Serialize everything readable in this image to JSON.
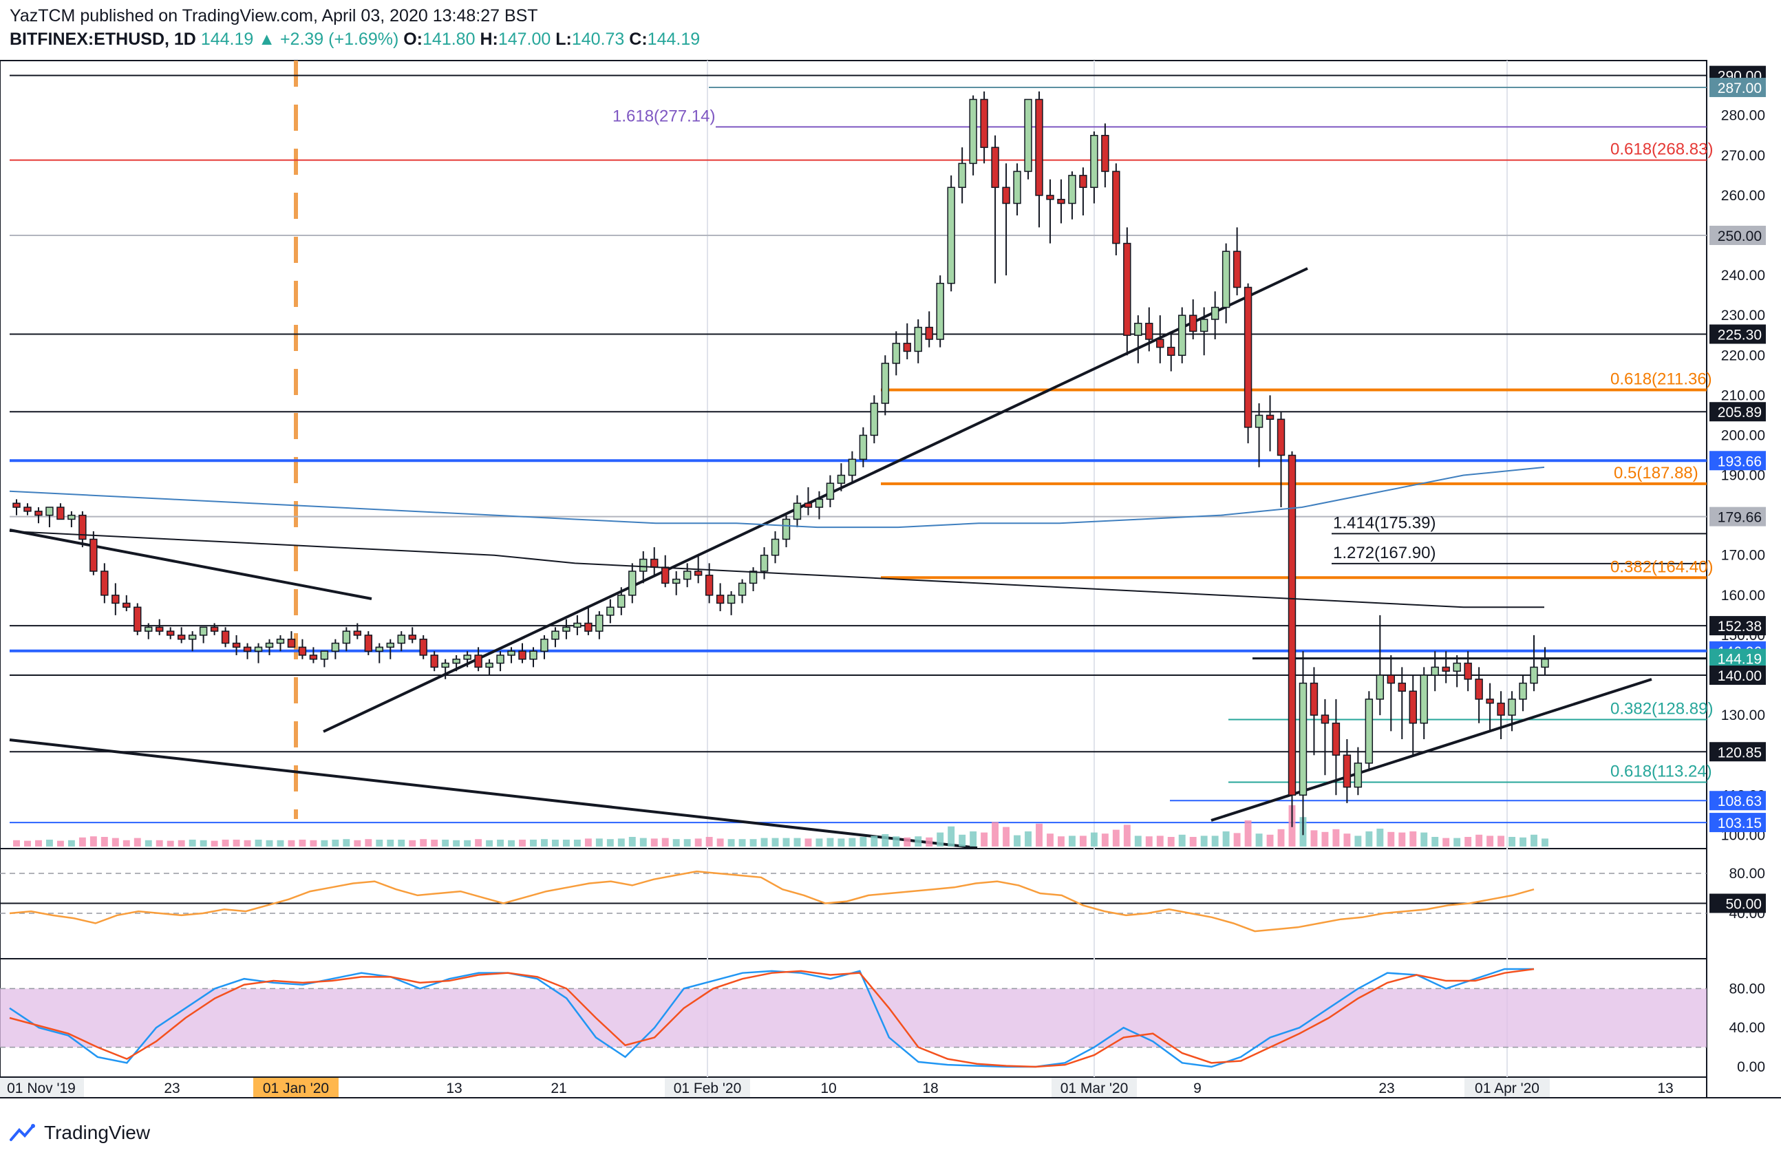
{
  "header": {
    "publisher_line": "YazTCM published on TradingView.com, April 03, 2020 13:48:27 BST",
    "symbol": "BITFINEX:ETHUSD, 1D",
    "last": "144.19",
    "change": "+2.39 (+1.69%)",
    "o_label": "O:",
    "o": "141.80",
    "h_label": "H:",
    "h": "147.00",
    "l_label": "L:",
    "l": "140.73",
    "c_label": "C:",
    "c": "144.19",
    "up_arrow": "▲"
  },
  "footer": {
    "brand": "TradingView",
    "logo_icon": "tradingview-logo-icon"
  },
  "colors": {
    "up": "#26a69a",
    "up_fill": "#a5d6a7",
    "down": "#ef5350",
    "down_fill": "#d32f2f",
    "fib_orange": "#f57c00",
    "fib_red": "#e53935",
    "fib_purple": "#7e57c2",
    "fib_teal": "#26a69a",
    "blue_level": "#2962ff",
    "ma_blue": "#3f7fbf",
    "rsi": "#f89d3b",
    "stoch_k": "#2196f3",
    "stoch_d": "#f4511e",
    "stoch_band": "#e1bee7"
  },
  "chart_data": {
    "type": "candlestick",
    "symbol": "BITFINEX:ETHUSD",
    "interval": "1D",
    "ylim": [
      98,
      292
    ],
    "x_ticks": [
      "01 Nov '19",
      "23",
      "01 Jan '20",
      "13",
      "21",
      "01 Feb '20",
      "10",
      "18",
      "01 Mar '20",
      "9",
      "23",
      "01 Apr '20",
      "13"
    ],
    "price_axis_labels": [
      "290.00",
      "280.00",
      "270.00",
      "260.00",
      "250.00",
      "240.00",
      "230.00",
      "220.00",
      "210.00",
      "200.00",
      "190.00",
      "180.00",
      "170.00",
      "160.00",
      "150.00",
      "140.00",
      "130.00",
      "120.00",
      "110.00",
      "100.00"
    ],
    "horizontal_levels": [
      {
        "value": 290.0,
        "label": "290.00",
        "style": "black"
      },
      {
        "value": 287.0,
        "label": "287.00",
        "style": "teal"
      },
      {
        "value": 250.0,
        "label": "250.00",
        "style": "gray"
      },
      {
        "value": 225.3,
        "label": "225.30",
        "style": "black"
      },
      {
        "value": 205.89,
        "label": "205.89",
        "style": "black"
      },
      {
        "value": 193.66,
        "label": "193.66",
        "style": "blue"
      },
      {
        "value": 179.66,
        "label": "179.66",
        "style": "gray"
      },
      {
        "value": 152.38,
        "label": "152.38",
        "style": "black"
      },
      {
        "value": 146.06,
        "label": "146.06",
        "style": "blue"
      },
      {
        "value": 144.19,
        "label": "144.19",
        "style": "last"
      },
      {
        "value": 140.0,
        "label": "140.00",
        "style": "black"
      },
      {
        "value": 120.85,
        "label": "120.85",
        "style": "black"
      },
      {
        "value": 108.63,
        "label": "108.63",
        "style": "blue"
      },
      {
        "value": 103.15,
        "label": "103.15",
        "style": "blue"
      }
    ],
    "fib_levels": [
      {
        "value": 277.14,
        "label": "1.618(277.14)",
        "color": "purple"
      },
      {
        "value": 268.83,
        "label": "0.618(268.83)",
        "color": "red"
      },
      {
        "value": 211.36,
        "label": "0.618(211.36)",
        "color": "orange"
      },
      {
        "value": 187.88,
        "label": "0.5(187.88)",
        "color": "orange"
      },
      {
        "value": 175.39,
        "label": "1.414(175.39)",
        "color": "black"
      },
      {
        "value": 167.9,
        "label": "1.272(167.90)",
        "color": "black"
      },
      {
        "value": 164.4,
        "label": "0.382(164.40)",
        "color": "orange"
      },
      {
        "value": 128.89,
        "label": "0.382(128.89)",
        "color": "teal"
      },
      {
        "value": 113.24,
        "label": "0.618(113.24)",
        "color": "teal"
      }
    ],
    "candles_ohlc": [
      [
        183,
        184,
        180,
        182
      ],
      [
        182,
        183,
        180,
        181
      ],
      [
        181,
        182,
        178,
        180
      ],
      [
        180,
        182,
        177,
        182
      ],
      [
        182,
        183,
        180,
        179
      ],
      [
        179,
        181,
        177,
        180
      ],
      [
        180,
        181,
        172,
        174
      ],
      [
        174,
        176,
        165,
        166
      ],
      [
        166,
        168,
        158,
        160
      ],
      [
        160,
        163,
        155,
        158
      ],
      [
        158,
        160,
        156,
        157
      ],
      [
        157,
        158,
        150,
        151
      ],
      [
        151,
        153,
        149,
        152
      ],
      [
        152,
        154,
        150,
        151
      ],
      [
        151,
        152,
        149,
        150
      ],
      [
        150,
        152,
        148,
        149
      ],
      [
        149,
        151,
        146,
        150
      ],
      [
        150,
        152,
        148,
        152
      ],
      [
        152,
        153,
        150,
        151
      ],
      [
        151,
        152,
        147,
        148
      ],
      [
        148,
        150,
        145,
        147
      ],
      [
        147,
        148,
        144,
        146
      ],
      [
        146,
        148,
        143,
        147
      ],
      [
        147,
        149,
        145,
        148
      ],
      [
        148,
        150,
        146,
        149
      ],
      [
        149,
        151,
        147,
        147
      ],
      [
        147,
        149,
        144,
        145
      ],
      [
        145,
        147,
        143,
        144
      ],
      [
        144,
        146,
        142,
        146
      ],
      [
        146,
        149,
        144,
        148
      ],
      [
        148,
        152,
        146,
        151
      ],
      [
        151,
        153,
        149,
        150
      ],
      [
        150,
        151,
        145,
        146
      ],
      [
        146,
        148,
        143,
        147
      ],
      [
        147,
        149,
        144,
        148
      ],
      [
        148,
        151,
        146,
        150
      ],
      [
        150,
        152,
        148,
        149
      ],
      [
        149,
        150,
        144,
        145
      ],
      [
        145,
        146,
        141,
        142
      ],
      [
        142,
        144,
        139,
        143
      ],
      [
        143,
        145,
        141,
        144
      ],
      [
        144,
        146,
        142,
        145
      ],
      [
        145,
        147,
        141,
        142
      ],
      [
        142,
        144,
        140,
        143
      ],
      [
        143,
        146,
        141,
        145
      ],
      [
        145,
        147,
        143,
        146
      ],
      [
        146,
        148,
        143,
        144
      ],
      [
        144,
        147,
        142,
        146
      ],
      [
        146,
        150,
        144,
        149
      ],
      [
        149,
        152,
        147,
        151
      ],
      [
        151,
        154,
        149,
        152
      ],
      [
        152,
        155,
        150,
        153
      ],
      [
        153,
        157,
        150,
        151
      ],
      [
        151,
        156,
        149,
        155
      ],
      [
        155,
        159,
        153,
        157
      ],
      [
        157,
        162,
        155,
        160
      ],
      [
        160,
        168,
        158,
        166
      ],
      [
        166,
        171,
        163,
        169
      ],
      [
        169,
        172,
        165,
        167
      ],
      [
        167,
        170,
        162,
        163
      ],
      [
        163,
        166,
        160,
        164
      ],
      [
        164,
        168,
        162,
        166
      ],
      [
        166,
        170,
        163,
        165
      ],
      [
        165,
        168,
        158,
        160
      ],
      [
        160,
        163,
        156,
        158
      ],
      [
        158,
        161,
        155,
        160
      ],
      [
        160,
        164,
        158,
        163
      ],
      [
        163,
        167,
        161,
        166
      ],
      [
        166,
        172,
        164,
        170
      ],
      [
        170,
        176,
        168,
        174
      ],
      [
        174,
        180,
        172,
        179
      ],
      [
        179,
        185,
        177,
        183
      ],
      [
        183,
        187,
        180,
        182
      ],
      [
        182,
        186,
        179,
        184
      ],
      [
        184,
        190,
        182,
        188
      ],
      [
        188,
        193,
        186,
        190
      ],
      [
        190,
        196,
        188,
        194
      ],
      [
        194,
        202,
        192,
        200
      ],
      [
        200,
        210,
        198,
        208
      ],
      [
        208,
        220,
        205,
        218
      ],
      [
        218,
        226,
        215,
        223
      ],
      [
        223,
        228,
        219,
        221
      ],
      [
        221,
        229,
        218,
        227
      ],
      [
        227,
        231,
        222,
        224
      ],
      [
        224,
        240,
        222,
        238
      ],
      [
        238,
        265,
        236,
        262
      ],
      [
        262,
        272,
        258,
        268
      ],
      [
        268,
        285,
        265,
        284
      ],
      [
        284,
        286,
        268,
        272
      ],
      [
        272,
        275,
        238,
        262
      ],
      [
        262,
        268,
        240,
        258
      ],
      [
        258,
        268,
        255,
        266
      ],
      [
        266,
        284,
        264,
        284
      ],
      [
        284,
        286,
        252,
        260
      ],
      [
        260,
        264,
        248,
        259
      ],
      [
        259,
        264,
        253,
        258
      ],
      [
        258,
        266,
        254,
        265
      ],
      [
        265,
        267,
        255,
        262
      ],
      [
        262,
        276,
        258,
        275
      ],
      [
        275,
        278,
        262,
        266
      ],
      [
        266,
        268,
        245,
        248
      ],
      [
        248,
        252,
        220,
        225
      ],
      [
        225,
        230,
        218,
        228
      ],
      [
        228,
        232,
        221,
        224
      ],
      [
        224,
        230,
        218,
        222
      ],
      [
        222,
        226,
        216,
        220
      ],
      [
        220,
        232,
        218,
        230
      ],
      [
        230,
        234,
        224,
        226
      ],
      [
        226,
        232,
        220,
        229
      ],
      [
        229,
        236,
        224,
        232
      ],
      [
        232,
        248,
        228,
        246
      ],
      [
        246,
        252,
        235,
        237
      ],
      [
        237,
        238,
        198,
        202
      ],
      [
        202,
        208,
        192,
        205
      ],
      [
        205,
        210,
        196,
        204
      ],
      [
        204,
        206,
        182,
        195
      ],
      [
        195,
        196,
        102,
        110
      ],
      [
        110,
        146,
        100,
        138
      ],
      [
        138,
        142,
        120,
        130
      ],
      [
        130,
        134,
        115,
        128
      ],
      [
        128,
        134,
        110,
        120
      ],
      [
        120,
        124,
        108,
        112
      ],
      [
        112,
        122,
        110,
        118
      ],
      [
        118,
        136,
        116,
        134
      ],
      [
        134,
        155,
        130,
        140
      ],
      [
        140,
        145,
        126,
        138
      ],
      [
        138,
        142,
        124,
        136
      ],
      [
        136,
        140,
        120,
        128
      ],
      [
        128,
        142,
        124,
        140
      ],
      [
        140,
        146,
        136,
        142
      ],
      [
        142,
        146,
        138,
        141
      ],
      [
        141,
        145,
        137,
        143
      ],
      [
        143,
        146,
        136,
        139
      ],
      [
        139,
        142,
        128,
        134
      ],
      [
        134,
        138,
        126,
        133
      ],
      [
        133,
        136,
        124,
        130
      ],
      [
        130,
        136,
        126,
        134
      ],
      [
        134,
        140,
        131,
        138
      ],
      [
        138,
        150,
        136,
        142
      ],
      [
        142,
        147,
        140,
        144
      ]
    ],
    "series": [
      {
        "name": "",
        "kind": "moving-average",
        "values": [
          176,
          175,
          174,
          173,
          172,
          171,
          170,
          168,
          167,
          166,
          165,
          164,
          163,
          162,
          161,
          160,
          159,
          158,
          157,
          157
        ]
      },
      {
        "name": "",
        "kind": "moving-average",
        "values": [
          186,
          185,
          184,
          183,
          182,
          181,
          180,
          179,
          178,
          178,
          177,
          177,
          178,
          178,
          179,
          180,
          182,
          186,
          190,
          192
        ]
      }
    ],
    "rsi": {
      "ylim": [
        0,
        100
      ],
      "ticks": [
        "80.00",
        "50.00",
        "40.00"
      ],
      "level_label": "50.00",
      "values": [
        40,
        42,
        38,
        35,
        30,
        38,
        42,
        40,
        38,
        40,
        44,
        42,
        48,
        54,
        62,
        66,
        70,
        72,
        64,
        58,
        60,
        62,
        56,
        50,
        56,
        62,
        66,
        70,
        72,
        68,
        74,
        78,
        82,
        80,
        78,
        76,
        64,
        58,
        50,
        52,
        58,
        60,
        62,
        64,
        66,
        70,
        72,
        68,
        60,
        58,
        48,
        42,
        38,
        40,
        44,
        40,
        36,
        30,
        22,
        24,
        26,
        30,
        34,
        36,
        40,
        42,
        44,
        48,
        50,
        54,
        58,
        64
      ]
    },
    "stoch_rsi": {
      "ylim": [
        0,
        100
      ],
      "ticks": [
        "80.00",
        "40.00",
        "0.00"
      ],
      "k": [
        60,
        40,
        32,
        10,
        4,
        40,
        60,
        80,
        90,
        86,
        84,
        90,
        96,
        92,
        80,
        90,
        96,
        96,
        90,
        70,
        30,
        10,
        40,
        80,
        88,
        96,
        98,
        96,
        90,
        98,
        30,
        5,
        2,
        1,
        0,
        0,
        4,
        20,
        40,
        26,
        4,
        0,
        10,
        30,
        40,
        60,
        80,
        96,
        94,
        80,
        90,
        100,
        100
      ],
      "d": [
        50,
        42,
        34,
        20,
        8,
        26,
        50,
        70,
        84,
        88,
        86,
        88,
        92,
        92,
        86,
        88,
        94,
        96,
        92,
        80,
        50,
        22,
        30,
        60,
        80,
        90,
        96,
        98,
        94,
        96,
        60,
        20,
        8,
        3,
        1,
        0,
        2,
        12,
        30,
        34,
        14,
        4,
        6,
        20,
        34,
        50,
        70,
        86,
        94,
        88,
        88,
        96,
        100
      ]
    }
  }
}
